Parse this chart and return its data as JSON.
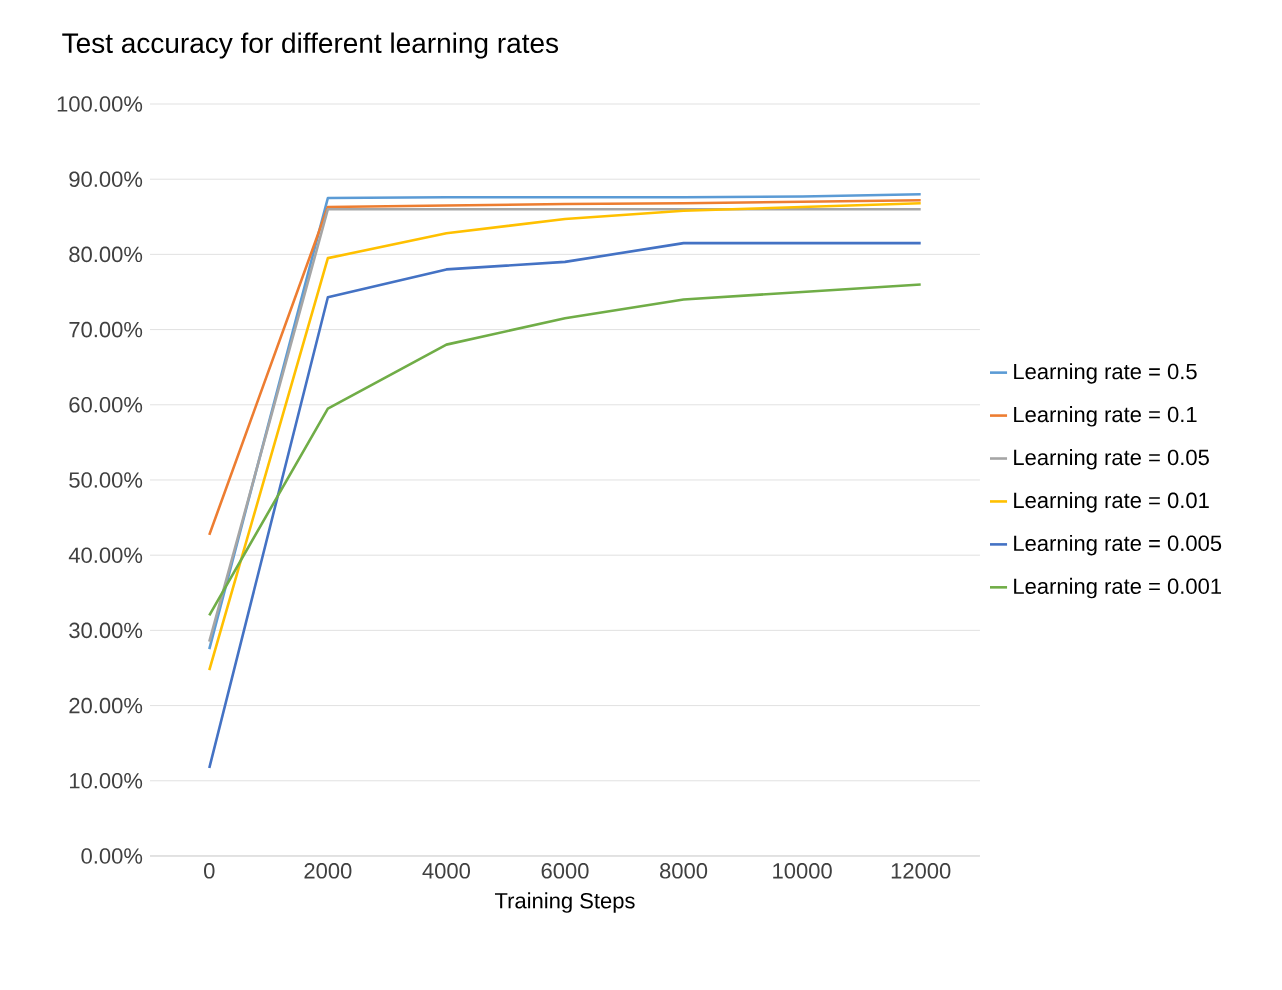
{
  "chart_data": {
    "type": "line",
    "title": "Test accuracy for different learning rates",
    "xlabel": "Training Steps",
    "categories": [
      "0",
      "2000",
      "4000",
      "6000",
      "8000",
      "10000",
      "12000"
    ],
    "ylim": [
      0,
      100
    ],
    "yticks": [
      {
        "value": 0,
        "label": "0.00%"
      },
      {
        "value": 10,
        "label": "10.00%"
      },
      {
        "value": 20,
        "label": "20.00%"
      },
      {
        "value": 30,
        "label": "30.00%"
      },
      {
        "value": 40,
        "label": "40.00%"
      },
      {
        "value": 50,
        "label": "50.00%"
      },
      {
        "value": 60,
        "label": "60.00%"
      },
      {
        "value": 70,
        "label": "70.00%"
      },
      {
        "value": 80,
        "label": "80.00%"
      },
      {
        "value": 90,
        "label": "90.00%"
      },
      {
        "value": 100,
        "label": "100.00%"
      }
    ],
    "grid": "y",
    "legend": "right",
    "marker": "none",
    "line_style": "solid",
    "series": [
      {
        "name": "Learning rate = 0.5",
        "color": "#5b9bd5",
        "values": [
          27.5,
          87.5,
          87.6,
          87.6,
          87.6,
          87.7,
          88
        ]
      },
      {
        "name": "Learning rate = 0.1",
        "color": "#ed7d31",
        "values": [
          42.7,
          86.3,
          86.5,
          86.7,
          86.8,
          87,
          87.2
        ]
      },
      {
        "name": "Learning rate = 0.05",
        "color": "#a5a5a5",
        "values": [
          28.5,
          86,
          86,
          86,
          86,
          86,
          86
        ]
      },
      {
        "name": "Learning rate = 0.01",
        "color": "#ffc000",
        "values": [
          24.7,
          79.5,
          82.8,
          84.7,
          85.8,
          86.3,
          86.8
        ]
      },
      {
        "name": "Learning rate = 0.005",
        "color": "#4472c4",
        "values": [
          11.7,
          74.3,
          78,
          79,
          81.5,
          81.5,
          81.5
        ]
      },
      {
        "name": "Learning rate = 0.001",
        "color": "#70ad47",
        "values": [
          32,
          59.5,
          68,
          71.5,
          74,
          75,
          76
        ]
      }
    ]
  }
}
